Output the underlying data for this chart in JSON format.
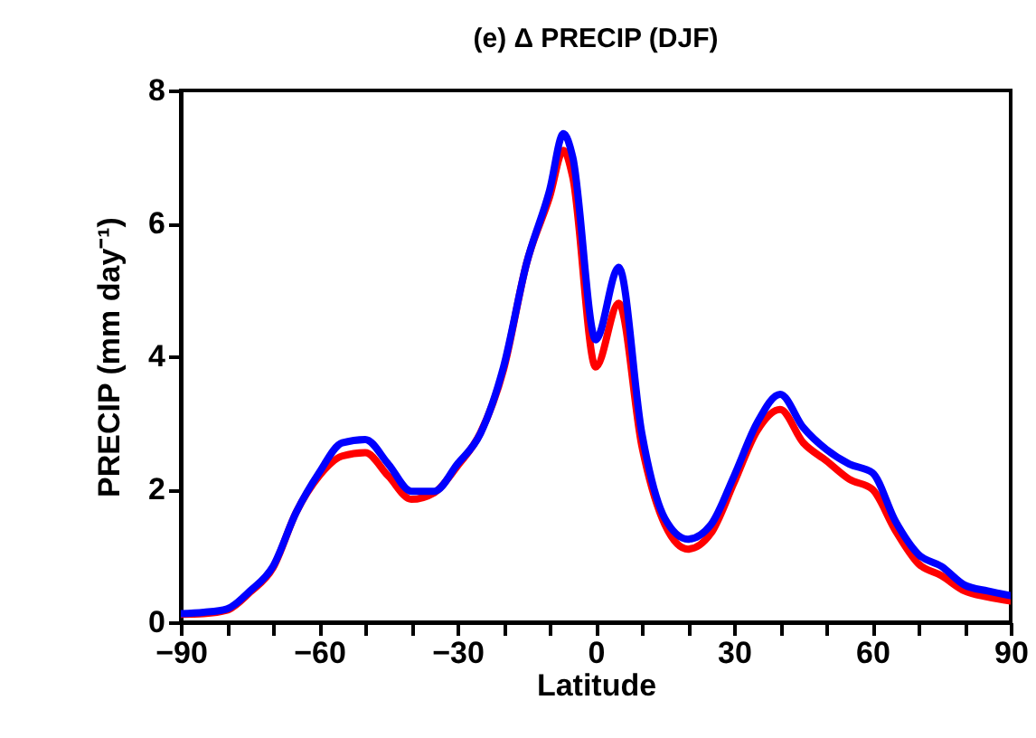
{
  "chart_data": {
    "type": "line",
    "title": "(e) Δ PRECIP (DJF)",
    "xlabel": "Latitude",
    "ylabel": "PRECIP (mm day⁻¹)",
    "x": [
      -90,
      -85,
      -80,
      -75,
      -70,
      -65,
      -60,
      -55,
      -50,
      -45,
      -40,
      -35,
      -30,
      -25,
      -20,
      -15,
      -10,
      -7,
      -5,
      0,
      5,
      10,
      15,
      20,
      25,
      30,
      35,
      40,
      45,
      50,
      55,
      60,
      65,
      70,
      75,
      80,
      85,
      90
    ],
    "series": [
      {
        "color": "#ff0000",
        "values": [
          0.12,
          0.13,
          0.18,
          0.45,
          0.82,
          1.65,
          2.2,
          2.5,
          2.55,
          2.2,
          1.85,
          1.95,
          2.35,
          2.85,
          3.8,
          5.4,
          6.4,
          7.1,
          6.7,
          3.84,
          4.8,
          2.65,
          1.47,
          1.1,
          1.34,
          2.1,
          2.88,
          3.2,
          2.7,
          2.43,
          2.15,
          2.0,
          1.38,
          0.88,
          0.7,
          0.47,
          0.38,
          0.32
        ]
      },
      {
        "color": "#0000ff",
        "values": [
          0.13,
          0.15,
          0.2,
          0.47,
          0.84,
          1.65,
          2.25,
          2.7,
          2.75,
          2.38,
          1.97,
          1.97,
          2.38,
          2.84,
          3.84,
          5.4,
          6.5,
          7.35,
          7.0,
          4.25,
          5.34,
          2.84,
          1.56,
          1.25,
          1.47,
          2.2,
          3.0,
          3.43,
          2.93,
          2.6,
          2.38,
          2.25,
          1.52,
          1.02,
          0.84,
          0.56,
          0.47,
          0.4
        ]
      }
    ],
    "xlim": [
      -90,
      90
    ],
    "ylim": [
      0,
      8
    ],
    "xticks": [
      -90,
      {
        "value": -80,
        "label": null
      },
      {
        "value": -70,
        "label": null
      },
      -60,
      {
        "value": -50,
        "label": null
      },
      {
        "value": -40,
        "label": null
      },
      -30,
      {
        "value": -20,
        "label": null
      },
      {
        "value": -10,
        "label": null
      },
      0,
      {
        "value": 10,
        "label": null
      },
      {
        "value": 20,
        "label": null
      },
      30,
      {
        "value": 40,
        "label": null
      },
      {
        "value": 50,
        "label": null
      },
      60,
      {
        "value": 70,
        "label": null
      },
      {
        "value": 80,
        "label": null
      },
      90
    ],
    "yticks": [
      0,
      2,
      4,
      6,
      8
    ],
    "line_style": "solid"
  }
}
